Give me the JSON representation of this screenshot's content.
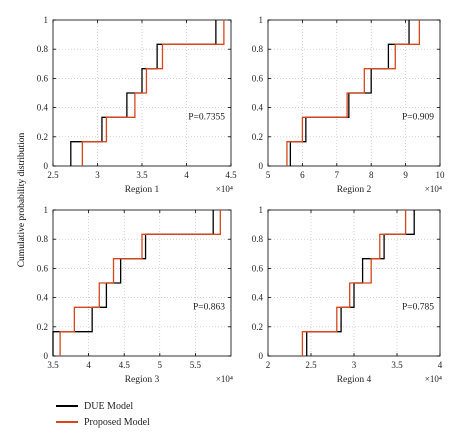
{
  "figure": {
    "ylabel": "Cumulative probability distribution",
    "colors": {
      "due": "#000000",
      "proposed": "#d9461c",
      "axis": "#000000",
      "grid": "#b8b8b8"
    }
  },
  "legend": {
    "due_label": "DUE Model",
    "proposed_label": "Proposed Model"
  },
  "chart_data": [
    {
      "type": "line",
      "xlabel": "Region 1",
      "x_exponent_label": "×10⁴",
      "xlim": [
        2.5,
        4.5
      ],
      "xticks": [
        2.5,
        3,
        3.5,
        4,
        4.5
      ],
      "xtick_labels": [
        "2.5",
        "3",
        "3.5",
        "4",
        "4.5"
      ],
      "ylim": [
        0,
        1
      ],
      "yticks": [
        0,
        0.2,
        0.4,
        0.6,
        0.8,
        1
      ],
      "ytick_labels": [
        "0",
        "0.2",
        "0.4",
        "0.6",
        "0.8",
        "1"
      ],
      "grid": true,
      "annotation": "P=0.7355",
      "series": [
        {
          "name": "DUE Model",
          "x": [
            2.7,
            3.05,
            3.33,
            3.5,
            3.67,
            4.33
          ]
        },
        {
          "name": "Proposed Model",
          "x": [
            2.83,
            3.1,
            3.42,
            3.55,
            3.73,
            4.42
          ]
        }
      ]
    },
    {
      "type": "line",
      "xlabel": "Region 2",
      "x_exponent_label": "×10⁴",
      "xlim": [
        5,
        10
      ],
      "xticks": [
        5,
        6,
        7,
        8,
        9,
        10
      ],
      "xtick_labels": [
        "5",
        "6",
        "7",
        "8",
        "9",
        "10"
      ],
      "ylim": [
        0,
        1
      ],
      "yticks": [
        0,
        0.2,
        0.4,
        0.6,
        0.8,
        1
      ],
      "ytick_labels": [
        "0",
        "0.2",
        "0.4",
        "0.6",
        "0.8",
        "1"
      ],
      "grid": true,
      "annotation": "P=0.909",
      "series": [
        {
          "name": "DUE Model",
          "x": [
            5.65,
            6.1,
            7.35,
            8.0,
            8.5,
            9.1
          ]
        },
        {
          "name": "Proposed Model",
          "x": [
            5.55,
            6.0,
            7.3,
            7.8,
            8.7,
            9.4
          ]
        }
      ]
    },
    {
      "type": "line",
      "xlabel": "Region 3",
      "x_exponent_label": "×10⁴",
      "xlim": [
        3.5,
        6
      ],
      "xticks": [
        3.5,
        4,
        4.5,
        5,
        5.5
      ],
      "xtick_labels": [
        "3.5",
        "4",
        "4.5",
        "5",
        "5.5"
      ],
      "ylim": [
        0,
        1
      ],
      "yticks": [
        0,
        0.2,
        0.4,
        0.6,
        0.8,
        1
      ],
      "ytick_labels": [
        "0",
        "0.2",
        "0.4",
        "0.6",
        "0.8",
        "1"
      ],
      "grid": true,
      "annotation": "P=0.863",
      "series": [
        {
          "name": "DUE Model",
          "x": [
            3.5,
            4.05,
            4.25,
            4.45,
            4.8,
            5.75
          ]
        },
        {
          "name": "Proposed Model",
          "x": [
            3.6,
            3.8,
            4.15,
            4.35,
            4.75,
            5.85
          ]
        }
      ]
    },
    {
      "type": "line",
      "xlabel": "Region 4",
      "x_exponent_label": "×10⁴",
      "xlim": [
        2,
        4
      ],
      "xticks": [
        2,
        2.5,
        3,
        3.5,
        4
      ],
      "xtick_labels": [
        "2",
        "2.5",
        "3",
        "3.5",
        "4"
      ],
      "ylim": [
        0,
        1
      ],
      "yticks": [
        0,
        0.2,
        0.4,
        0.6,
        0.8,
        1
      ],
      "ytick_labels": [
        "0",
        "0.2",
        "0.4",
        "0.6",
        "0.8",
        "1"
      ],
      "grid": true,
      "annotation": "P=0.785",
      "series": [
        {
          "name": "DUE Model",
          "x": [
            2.45,
            2.85,
            3.0,
            3.1,
            3.35,
            3.7
          ]
        },
        {
          "name": "Proposed Model",
          "x": [
            2.4,
            2.8,
            2.95,
            3.2,
            3.3,
            3.6
          ]
        }
      ]
    }
  ]
}
